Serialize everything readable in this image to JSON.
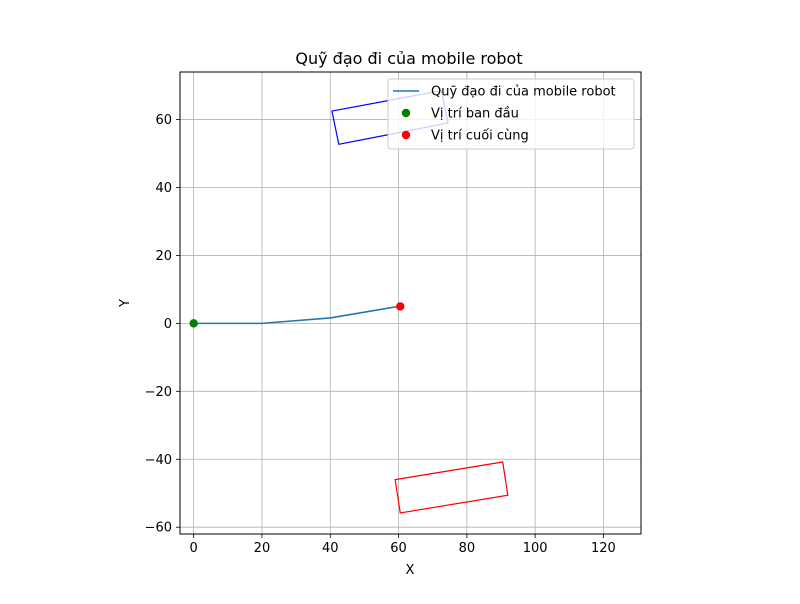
{
  "chart_data": {
    "type": "line",
    "title": "Quỹ đạo đi của mobile robot",
    "xlabel": "X",
    "ylabel": "Y",
    "xlim": [
      -4,
      131
    ],
    "ylim": [
      -62,
      74
    ],
    "xticks": [
      0,
      20,
      40,
      60,
      80,
      100,
      120
    ],
    "yticks": [
      -60,
      -40,
      -20,
      0,
      20,
      40,
      60
    ],
    "xtick_labels": [
      "0",
      "20",
      "40",
      "60",
      "80",
      "100",
      "120"
    ],
    "ytick_labels": [
      "−60",
      "−40",
      "−20",
      "0",
      "20",
      "40",
      "60"
    ],
    "grid": true,
    "legend_position": "upper-right",
    "series": [
      {
        "name": "Quỹ đạo đi của mobile robot",
        "kind": "line",
        "color": "#1f77b4",
        "points": [
          [
            0,
            0
          ],
          [
            20,
            0
          ],
          [
            40,
            1.6
          ],
          [
            60,
            5
          ]
        ]
      }
    ],
    "markers": [
      {
        "name": "Vị trí ban đầu",
        "color": "#008000",
        "x": 0,
        "y": 0
      },
      {
        "name": "Vị trí cuối cùng",
        "color": "#ff0000",
        "x": 60.5,
        "y": 5
      }
    ],
    "shapes": [
      {
        "color": "#0000ff",
        "points": [
          [
            40.5,
            62.5
          ],
          [
            72.5,
            68.5
          ],
          [
            74.5,
            59
          ],
          [
            42.5,
            52.7
          ]
        ]
      },
      {
        "color": "#ff0000",
        "points": [
          [
            59,
            -46
          ],
          [
            90.5,
            -40.8
          ],
          [
            92,
            -50.6
          ],
          [
            60.5,
            -55.8
          ]
        ]
      }
    ]
  }
}
